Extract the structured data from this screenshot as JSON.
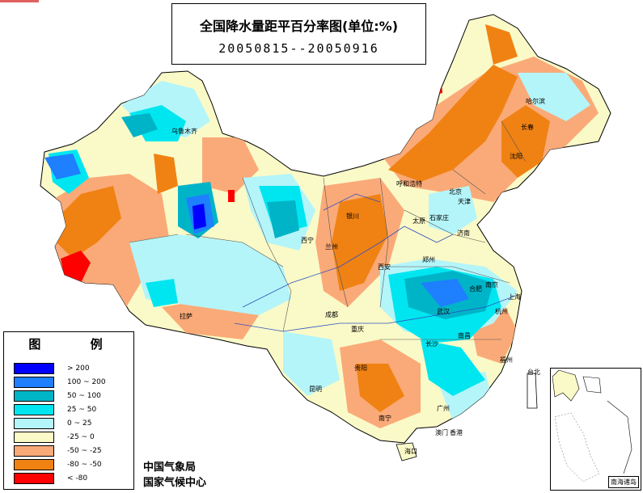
{
  "title": "全国降水量距平百分率图(单位:%)",
  "date_range": "20050815--20050916",
  "legend": {
    "title": "图 例",
    "items": [
      {
        "label": "> 200",
        "color": "#0000ff"
      },
      {
        "label": "100 ~ 200",
        "color": "#1e7fff"
      },
      {
        "label": "50 ~ 100",
        "color": "#00b4c8"
      },
      {
        "label": "25 ~ 50",
        "color": "#00e6f0"
      },
      {
        "label": "0 ~ 25",
        "color": "#b4f5fa"
      },
      {
        "label": "-25 ~ 0",
        "color": "#fafac8"
      },
      {
        "label": "-50 ~ -25",
        "color": "#faaa78"
      },
      {
        "label": "-80 ~ -50",
        "color": "#f08214"
      },
      {
        "label": "< -80",
        "color": "#ff0000"
      }
    ]
  },
  "credits": [
    "中国气象局",
    "国家气候中心"
  ],
  "inset_label": "南海诸岛",
  "cities": [
    {
      "name": "乌鲁木齐"
    },
    {
      "name": "哈尔滨"
    },
    {
      "name": "长春"
    },
    {
      "name": "沈阳"
    },
    {
      "name": "呼和浩特"
    },
    {
      "name": "北京"
    },
    {
      "name": "天津"
    },
    {
      "name": "银川"
    },
    {
      "name": "太原"
    },
    {
      "name": "石家庄"
    },
    {
      "name": "济南"
    },
    {
      "name": "西宁"
    },
    {
      "name": "兰州"
    },
    {
      "name": "西安"
    },
    {
      "name": "郑州"
    },
    {
      "name": "合肥"
    },
    {
      "name": "南京"
    },
    {
      "name": "上海"
    },
    {
      "name": "拉萨"
    },
    {
      "name": "成都"
    },
    {
      "name": "重庆"
    },
    {
      "name": "武汉"
    },
    {
      "name": "杭州"
    },
    {
      "name": "长沙"
    },
    {
      "name": "南昌"
    },
    {
      "name": "福州"
    },
    {
      "name": "贵阳"
    },
    {
      "name": "昆明"
    },
    {
      "name": "台北"
    },
    {
      "name": "广州"
    },
    {
      "name": "南宁"
    },
    {
      "name": "香港"
    },
    {
      "name": "澳门"
    },
    {
      "name": "海口"
    }
  ]
}
